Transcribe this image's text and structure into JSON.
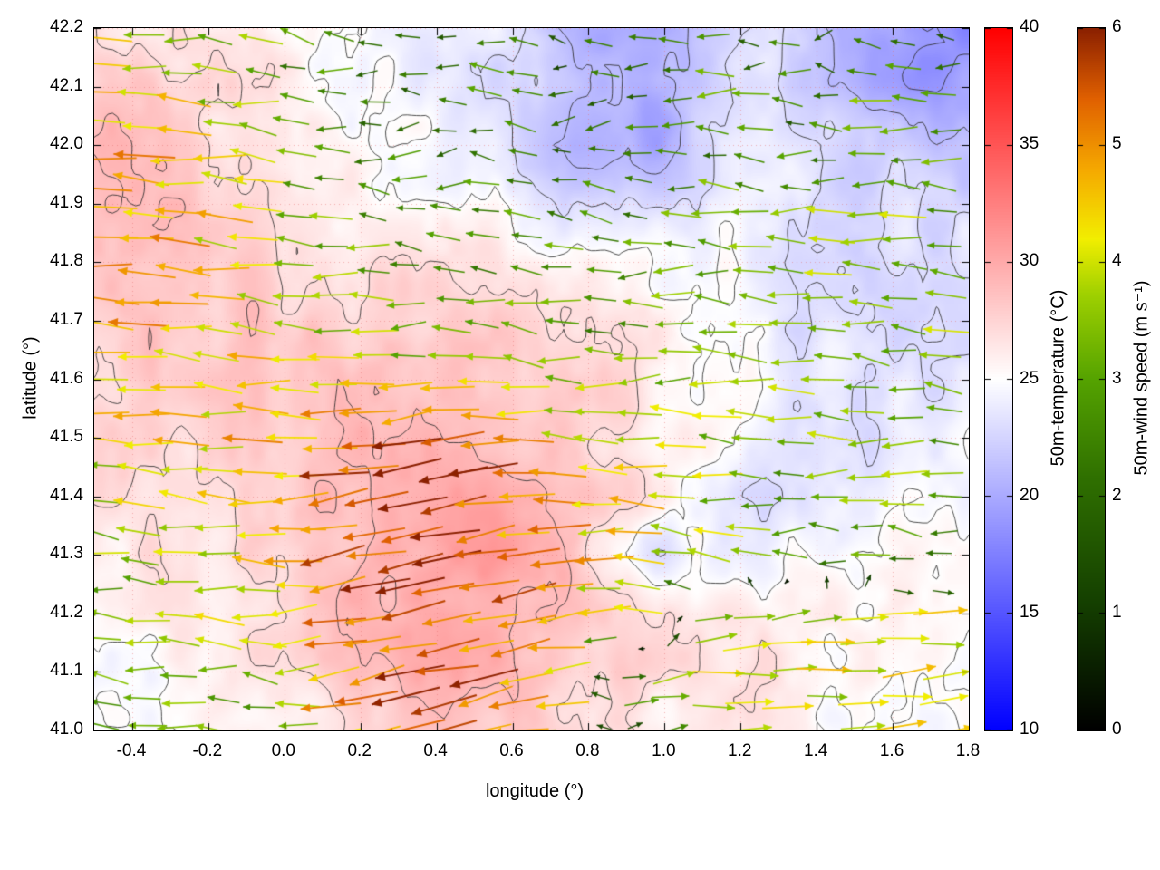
{
  "chart_data": {
    "type": "heatmap",
    "subtype": "temperature field with contour lines and wind-vector quiver overlay",
    "title": "",
    "xlabel": "longitude (°)",
    "ylabel": "latitude (°)",
    "xlim": [
      -0.5,
      1.8
    ],
    "ylim": [
      41.0,
      42.2
    ],
    "xtick_labels": [
      "-0.4",
      "-0.2",
      "0.0",
      "0.2",
      "0.4",
      "0.6",
      "0.8",
      "1.0",
      "1.2",
      "1.4",
      "1.6",
      "1.8"
    ],
    "ytick_labels": [
      "41.0",
      "41.1",
      "41.2",
      "41.3",
      "41.4",
      "41.5",
      "41.6",
      "41.7",
      "41.8",
      "41.9",
      "42.0",
      "42.1",
      "42.2"
    ],
    "grid": "dotted",
    "contour_levels": [
      19,
      21,
      23,
      25,
      27,
      29
    ],
    "temperature": {
      "label": "50m-temperature (°C)",
      "range": [
        10,
        40
      ],
      "tick_labels": [
        "10",
        "15",
        "20",
        "25",
        "30",
        "35",
        "40"
      ],
      "colormap": [
        [
          0,
          "#0000ff"
        ],
        [
          0.5,
          "#ffffff"
        ],
        [
          1,
          "#ff0000"
        ]
      ],
      "grid_lon": [
        -0.45,
        -0.25,
        -0.05,
        0.15,
        0.35,
        0.55,
        0.75,
        0.95,
        1.15,
        1.35,
        1.55,
        1.75
      ],
      "grid_lat": [
        42.2,
        42.1,
        42.0,
        41.9,
        41.8,
        41.7,
        41.6,
        41.5,
        41.4,
        41.3,
        41.2,
        41.1,
        41.0
      ],
      "values": [
        [
          27,
          26,
          25.5,
          25,
          24.5,
          23.5,
          21,
          20,
          22,
          23.5,
          19,
          18.5
        ],
        [
          28,
          27,
          26,
          25,
          24.5,
          23,
          21.5,
          19.5,
          22,
          23,
          20,
          19
        ],
        [
          28.5,
          27.5,
          26.5,
          25.5,
          25,
          24,
          20.5,
          20,
          23,
          23.5,
          22,
          21.5
        ],
        [
          28.5,
          28,
          27,
          26,
          25.5,
          25,
          23.5,
          23,
          24,
          23.5,
          23,
          22.5
        ],
        [
          28,
          28,
          27.5,
          27,
          26.5,
          26,
          26,
          25.5,
          24.5,
          23,
          23,
          23.5
        ],
        [
          28,
          28.5,
          28,
          27.5,
          27,
          27.5,
          27,
          26.5,
          25,
          23.5,
          23,
          23.5
        ],
        [
          27.5,
          28,
          28.5,
          28.5,
          28.5,
          28,
          27.5,
          26.5,
          25.5,
          24,
          23.5,
          24
        ],
        [
          27,
          27.5,
          28,
          29,
          29.5,
          29,
          28,
          26.5,
          25,
          23.5,
          23,
          24.5
        ],
        [
          26.5,
          27,
          27.5,
          29,
          30.5,
          30,
          28.5,
          26.5,
          24.5,
          23,
          24,
          25
        ],
        [
          26,
          26.5,
          27,
          28.5,
          30,
          30.5,
          28.5,
          23.5,
          24,
          25,
          25,
          25.5
        ],
        [
          25.5,
          26,
          26.5,
          28.5,
          30,
          30,
          28,
          26,
          26.5,
          26,
          25.5,
          25.5
        ],
        [
          25,
          25.5,
          26,
          28,
          29.5,
          29.5,
          28.5,
          27,
          26.5,
          26,
          25.5,
          25
        ],
        [
          25,
          25.5,
          26,
          27,
          28.5,
          28.5,
          27.5,
          26.5,
          26,
          25.5,
          25,
          25
        ]
      ]
    },
    "wind": {
      "label": "50m-wind speed (m s⁻¹)",
      "range": [
        0,
        6
      ],
      "tick_labels": [
        "0",
        "1",
        "2",
        "3",
        "4",
        "5",
        "6"
      ],
      "colormap": [
        [
          0,
          "#000000"
        ],
        [
          0.18,
          "#143f00"
        ],
        [
          0.36,
          "#2f7000"
        ],
        [
          0.5,
          "#55a300"
        ],
        [
          0.62,
          "#9ed000"
        ],
        [
          0.7,
          "#f2ee00"
        ],
        [
          0.8,
          "#f5a800"
        ],
        [
          0.9,
          "#e06000"
        ],
        [
          1,
          "#8b2000"
        ]
      ],
      "grid_lon": [
        -0.45,
        -0.25,
        -0.05,
        0.15,
        0.35,
        0.55,
        0.75,
        0.95,
        1.15,
        1.35,
        1.55,
        1.75
      ],
      "grid_lat": [
        42.2,
        42.1,
        42.0,
        41.9,
        41.8,
        41.7,
        41.6,
        41.5,
        41.4,
        41.3,
        41.2,
        41.1,
        41.0
      ],
      "uv": [
        [
          [
            -4.2,
            0.5
          ],
          [
            -3.8,
            0.2
          ],
          [
            -3.0,
            0.8
          ],
          [
            -2.0,
            1.0
          ],
          [
            -1.5,
            -0.8
          ],
          [
            -2.2,
            0.3
          ],
          [
            -1.2,
            1.5
          ],
          [
            -2.5,
            -0.5
          ],
          [
            -2.2,
            0.4
          ],
          [
            -1.8,
            -0.6
          ],
          [
            -2.5,
            0.3
          ],
          [
            -2.0,
            0.6
          ]
        ],
        [
          [
            -4.5,
            0.3
          ],
          [
            -4.0,
            0.5
          ],
          [
            -3.2,
            0.2
          ],
          [
            -2.5,
            -0.5
          ],
          [
            -2.0,
            0.8
          ],
          [
            -2.5,
            0.5
          ],
          [
            -1.5,
            -1.2
          ],
          [
            -2.0,
            0.6
          ],
          [
            -2.8,
            -0.3
          ],
          [
            -2.2,
            0.5
          ],
          [
            -3.0,
            0.2
          ],
          [
            -2.6,
            -0.4
          ]
        ],
        [
          [
            -4.8,
            0.2
          ],
          [
            -4.2,
            0.3
          ],
          [
            -3.5,
            0.6
          ],
          [
            -2.8,
            0.3
          ],
          [
            -2.2,
            -0.6
          ],
          [
            -2.6,
            0.8
          ],
          [
            -2.0,
            0.3
          ],
          [
            -2.4,
            -0.8
          ],
          [
            -2.6,
            0.5
          ],
          [
            -2.2,
            0.2
          ],
          [
            -2.8,
            -0.5
          ],
          [
            -3.0,
            0.3
          ]
        ],
        [
          [
            -4.6,
            0.4
          ],
          [
            -4.4,
            0.2
          ],
          [
            -3.8,
            0.4
          ],
          [
            -3.0,
            0.6
          ],
          [
            -2.5,
            0.2
          ],
          [
            -2.8,
            -0.5
          ],
          [
            -2.2,
            0.8
          ],
          [
            -2.6,
            0.2
          ],
          [
            -3.0,
            0.5
          ],
          [
            -3.2,
            -0.3
          ],
          [
            -3.5,
            0.4
          ],
          [
            -3.0,
            0.2
          ]
        ],
        [
          [
            -4.8,
            0.3
          ],
          [
            -4.5,
            0.5
          ],
          [
            -4.0,
            0.2
          ],
          [
            -3.2,
            -0.4
          ],
          [
            -2.8,
            0.5
          ],
          [
            -2.5,
            0.3
          ],
          [
            -2.8,
            0.6
          ],
          [
            -3.0,
            -0.4
          ],
          [
            -3.2,
            0.3
          ],
          [
            -3.5,
            0.5
          ],
          [
            -3.8,
            0.2
          ],
          [
            -3.4,
            0.4
          ]
        ],
        [
          [
            -4.5,
            0.4
          ],
          [
            -4.8,
            0.2
          ],
          [
            -4.2,
            0.5
          ],
          [
            -3.5,
            0.3
          ],
          [
            -3.0,
            -0.5
          ],
          [
            -3.2,
            0.4
          ],
          [
            -2.8,
            0.2
          ],
          [
            -3.0,
            0.5
          ],
          [
            -3.4,
            0.3
          ],
          [
            -3.6,
            -0.4
          ],
          [
            -3.2,
            0.5
          ],
          [
            -3.5,
            0.3
          ]
        ],
        [
          [
            -4.2,
            0.3
          ],
          [
            -4.5,
            0.4
          ],
          [
            -4.8,
            0.2
          ],
          [
            -4.5,
            -0.5
          ],
          [
            -4.0,
            0.3
          ],
          [
            -3.8,
            0.5
          ],
          [
            -3.2,
            0.3
          ],
          [
            -3.5,
            -0.3
          ],
          [
            -3.8,
            0.4
          ],
          [
            -3.4,
            0.2
          ],
          [
            -3.6,
            0.5
          ],
          [
            -3.2,
            0.4
          ]
        ],
        [
          [
            -4.0,
            0.4
          ],
          [
            -4.2,
            0.2
          ],
          [
            -4.6,
            0.5
          ],
          [
            -5.2,
            -0.8
          ],
          [
            -5.5,
            -1.0
          ],
          [
            -5.0,
            -0.6
          ],
          [
            -4.2,
            0.3
          ],
          [
            -3.8,
            0.5
          ],
          [
            -3.5,
            0.2
          ],
          [
            -3.2,
            0.4
          ],
          [
            -3.4,
            -0.4
          ],
          [
            -3.0,
            0.5
          ]
        ],
        [
          [
            -3.8,
            0.3
          ],
          [
            -4.0,
            0.5
          ],
          [
            -4.4,
            0.3
          ],
          [
            -5.5,
            -1.0
          ],
          [
            -5.8,
            -1.2
          ],
          [
            -5.4,
            -0.8
          ],
          [
            -4.6,
            0.2
          ],
          [
            -4.0,
            0.4
          ],
          [
            -3.6,
            0.3
          ],
          [
            -3.2,
            -0.5
          ],
          [
            -3.5,
            0.4
          ],
          [
            -3.2,
            0.3
          ]
        ],
        [
          [
            -3.5,
            0.4
          ],
          [
            -3.8,
            0.2
          ],
          [
            -4.0,
            0.4
          ],
          [
            -5.4,
            -1.2
          ],
          [
            -5.8,
            -1.0
          ],
          [
            -5.6,
            -1.2
          ],
          [
            -4.8,
            -0.6
          ],
          [
            -4.2,
            0.5
          ],
          [
            -3.5,
            0.4
          ],
          [
            -3.0,
            0.3
          ],
          [
            -3.0,
            0.4
          ],
          [
            -2.8,
            0.3
          ]
        ],
        [
          [
            -3.2,
            0.3
          ],
          [
            -3.5,
            0.4
          ],
          [
            -3.8,
            0.2
          ],
          [
            -5.2,
            -1.0
          ],
          [
            -5.6,
            -1.2
          ],
          [
            -5.2,
            -1.0
          ],
          [
            -4.5,
            -0.8
          ],
          [
            -3.8,
            0.3
          ],
          [
            3.5,
            0.4
          ],
          [
            3.8,
            0.5
          ],
          [
            4.0,
            0.3
          ],
          [
            4.2,
            0.4
          ]
        ],
        [
          [
            -3.0,
            0.4
          ],
          [
            -3.2,
            0.2
          ],
          [
            -3.5,
            0.4
          ],
          [
            -5.0,
            -1.2
          ],
          [
            -5.5,
            -1.0
          ],
          [
            -5.2,
            -1.2
          ],
          [
            -4.2,
            -0.5
          ],
          [
            3.0,
            0.5
          ],
          [
            3.8,
            0.4
          ],
          [
            4.0,
            0.5
          ],
          [
            4.2,
            0.3
          ],
          [
            4.4,
            0.4
          ]
        ],
        [
          [
            -2.8,
            0.3
          ],
          [
            -3.0,
            0.4
          ],
          [
            -3.2,
            0.3
          ],
          [
            -4.8,
            -0.8
          ],
          [
            -5.2,
            -1.0
          ],
          [
            -4.8,
            -0.8
          ],
          [
            -3.5,
            0.4
          ],
          [
            2.8,
            0.4
          ],
          [
            3.5,
            0.5
          ],
          [
            3.8,
            0.3
          ],
          [
            4.0,
            0.4
          ],
          [
            4.2,
            0.5
          ]
        ]
      ]
    }
  }
}
